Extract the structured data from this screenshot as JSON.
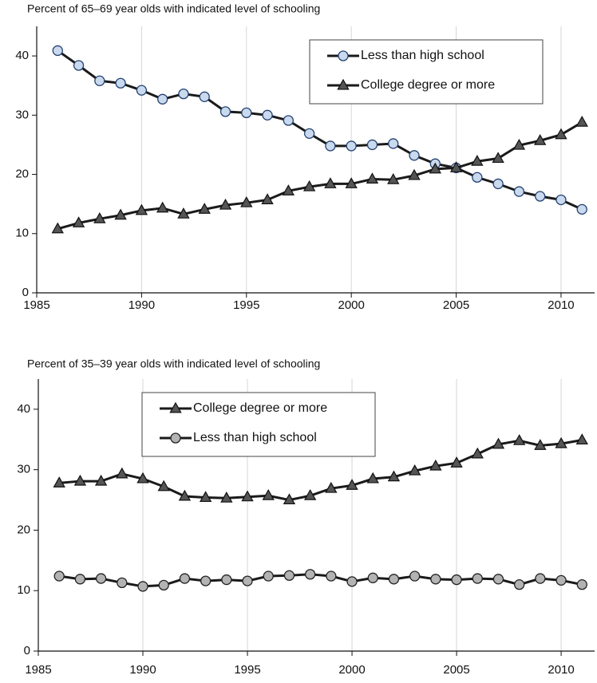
{
  "chart_data": [
    {
      "type": "line",
      "title": "Percent of 65–69 year olds with indicated level of schooling",
      "x": [
        1986,
        1987,
        1988,
        1989,
        1990,
        1991,
        1992,
        1993,
        1994,
        1995,
        1996,
        1997,
        1998,
        1999,
        2000,
        2001,
        2002,
        2003,
        2004,
        2005,
        2006,
        2007,
        2008,
        2009,
        2010,
        2011
      ],
      "xlim": [
        1985,
        2011.6
      ],
      "xticks": [
        1985,
        1990,
        1995,
        2000,
        2005,
        2010
      ],
      "ylim": [
        0,
        45
      ],
      "yticks": [
        0,
        10,
        20,
        30,
        40
      ],
      "grid": "x",
      "legend": "top-right",
      "series": [
        {
          "name": "Less than high school",
          "color": "#c9d9ee",
          "edge": "#23406e",
          "marker": "circle",
          "values": [
            40.9,
            38.4,
            35.8,
            35.4,
            34.2,
            32.7,
            33.6,
            33.1,
            30.6,
            30.4,
            30.0,
            29.1,
            26.9,
            24.8,
            24.8,
            25.0,
            25.2,
            23.2,
            21.8,
            21.1,
            19.5,
            18.4,
            17.1,
            16.3,
            15.7,
            14.1
          ]
        },
        {
          "name": "College degree or more",
          "color": "#555555",
          "edge": "#111111",
          "marker": "triangle",
          "values": [
            10.8,
            11.8,
            12.5,
            13.1,
            13.9,
            14.3,
            13.3,
            14.1,
            14.8,
            15.2,
            15.7,
            17.2,
            17.9,
            18.4,
            18.4,
            19.2,
            19.1,
            19.8,
            20.9,
            21.1,
            22.2,
            22.7,
            24.9,
            25.7,
            26.7,
            28.8
          ]
        }
      ]
    },
    {
      "type": "line",
      "title": "Percent of 35–39 year olds with indicated level of schooling",
      "x": [
        1986,
        1987,
        1988,
        1989,
        1990,
        1991,
        1992,
        1993,
        1994,
        1995,
        1996,
        1997,
        1998,
        1999,
        2000,
        2001,
        2002,
        2003,
        2004,
        2005,
        2006,
        2007,
        2008,
        2009,
        2010,
        2011
      ],
      "xlim": [
        1985,
        2011.6
      ],
      "xticks": [
        1985,
        1990,
        1995,
        2000,
        2005,
        2010
      ],
      "ylim": [
        0,
        45
      ],
      "yticks": [
        0,
        10,
        20,
        30,
        40
      ],
      "grid": "x",
      "legend": "top-left",
      "series": [
        {
          "name": "College degree or more",
          "color": "#555555",
          "edge": "#111111",
          "marker": "triangle",
          "values": [
            27.8,
            28.1,
            28.1,
            29.3,
            28.5,
            27.2,
            25.6,
            25.4,
            25.3,
            25.5,
            25.7,
            25.0,
            25.7,
            26.9,
            27.4,
            28.5,
            28.8,
            29.8,
            30.6,
            31.1,
            32.6,
            34.2,
            34.8,
            34.0,
            34.3,
            34.9
          ]
        },
        {
          "name": "Less than high school",
          "color": "#b3b3b3",
          "edge": "#222222",
          "marker": "circle",
          "values": [
            12.4,
            11.9,
            12.0,
            11.3,
            10.7,
            10.9,
            12.0,
            11.6,
            11.8,
            11.6,
            12.4,
            12.5,
            12.7,
            12.4,
            11.5,
            12.1,
            11.9,
            12.4,
            11.9,
            11.8,
            12.0,
            11.9,
            11.0,
            12.0,
            11.7,
            11.0
          ]
        }
      ]
    }
  ]
}
